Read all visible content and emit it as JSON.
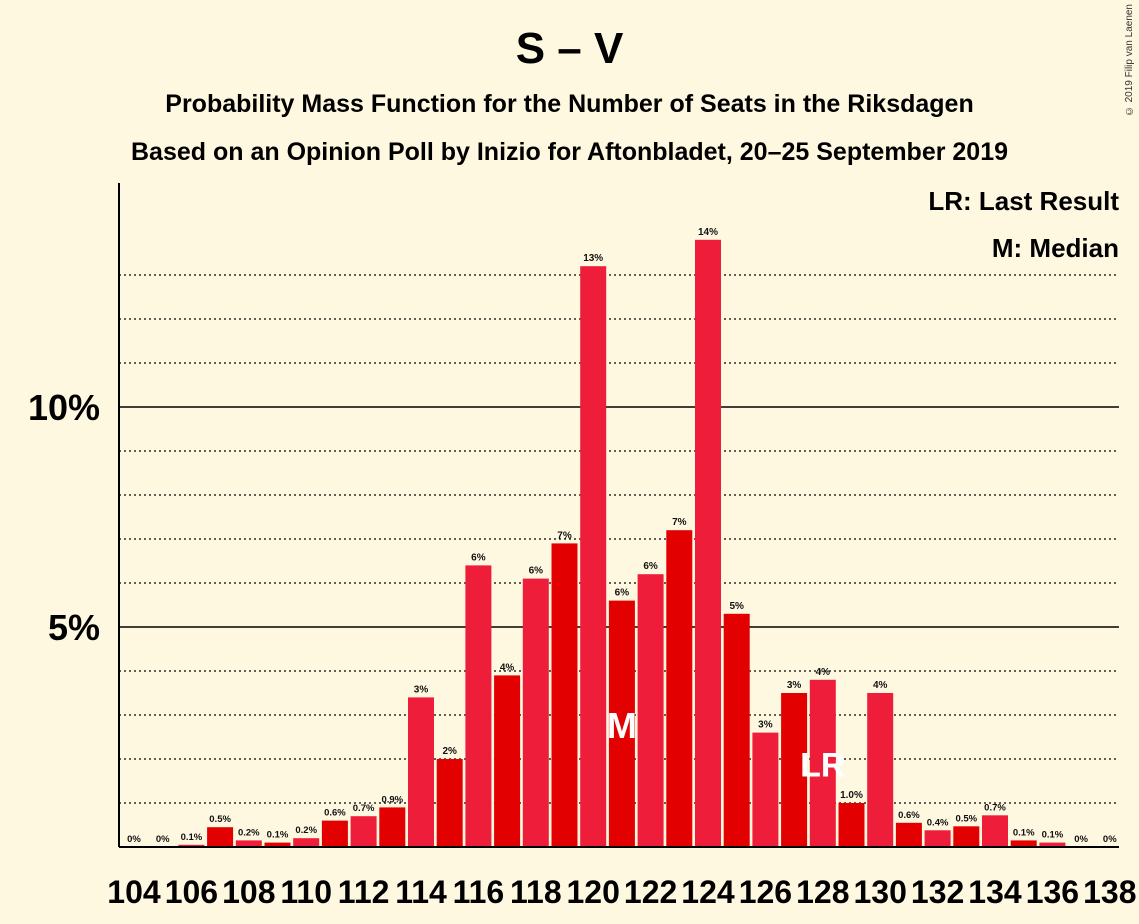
{
  "title": "S – V",
  "subtitle1": "Probability Mass Function for the Number of Seats in the Riksdagen",
  "subtitle2": "Based on an Opinion Poll by Inizio for Aftonbladet, 20–25 September 2019",
  "copyright": "© 2019 Filip van Laenen",
  "legend": {
    "last_result": "LR: Last Result",
    "median": "M: Median"
  },
  "colors": {
    "background": "#FFF8E1",
    "bar_primary": "#E30000",
    "bar_secondary": "#EE1D3A",
    "axis": "#000000"
  },
  "chart_data": {
    "type": "bar",
    "x": [
      104,
      105,
      106,
      107,
      108,
      109,
      110,
      111,
      112,
      113,
      114,
      115,
      116,
      117,
      118,
      119,
      120,
      121,
      122,
      123,
      124,
      125,
      126,
      127,
      128,
      129,
      130,
      131,
      132,
      133,
      134,
      135,
      136,
      137,
      138
    ],
    "values": [
      0,
      0,
      0.05,
      0.45,
      0.15,
      0.1,
      0.2,
      0.6,
      0.7,
      0.9,
      3.4,
      2.0,
      6.4,
      3.9,
      6.1,
      6.9,
      13.2,
      5.6,
      6.2,
      7.2,
      13.8,
      5.3,
      2.6,
      3.5,
      3.8,
      1.0,
      3.5,
      0.55,
      0.38,
      0.47,
      0.72,
      0.15,
      0.1,
      0,
      0
    ],
    "data_labels": [
      "0%",
      "0%",
      "0.1%",
      "0.5%",
      "0.2%",
      "0.1%",
      "0.2%",
      "0.6%",
      "0.7%",
      "0.9%",
      "3%",
      "2%",
      "6%",
      "4%",
      "6%",
      "7%",
      "13%",
      "6%",
      "6%",
      "7%",
      "14%",
      "5%",
      "3%",
      "3%",
      "4%",
      "1.0%",
      "4%",
      "0.6%",
      "0.4%",
      "0.5%",
      "0.7%",
      "0.1%",
      "0.1%",
      "0%",
      "0%"
    ],
    "x_tick_labels": [
      "104",
      "106",
      "108",
      "110",
      "112",
      "114",
      "116",
      "118",
      "120",
      "122",
      "124",
      "126",
      "128",
      "130",
      "132",
      "134",
      "136",
      "138"
    ],
    "y_tick_labels": [
      {
        "value": 5,
        "label": "5%"
      },
      {
        "value": 10,
        "label": "10%"
      }
    ],
    "ylim": [
      0,
      15
    ],
    "median_seat": 121,
    "median_marker": "M",
    "last_result_seat": 128,
    "last_result_marker": "LR",
    "grid": "dotted every 1%, solid at 5% and 10%"
  }
}
